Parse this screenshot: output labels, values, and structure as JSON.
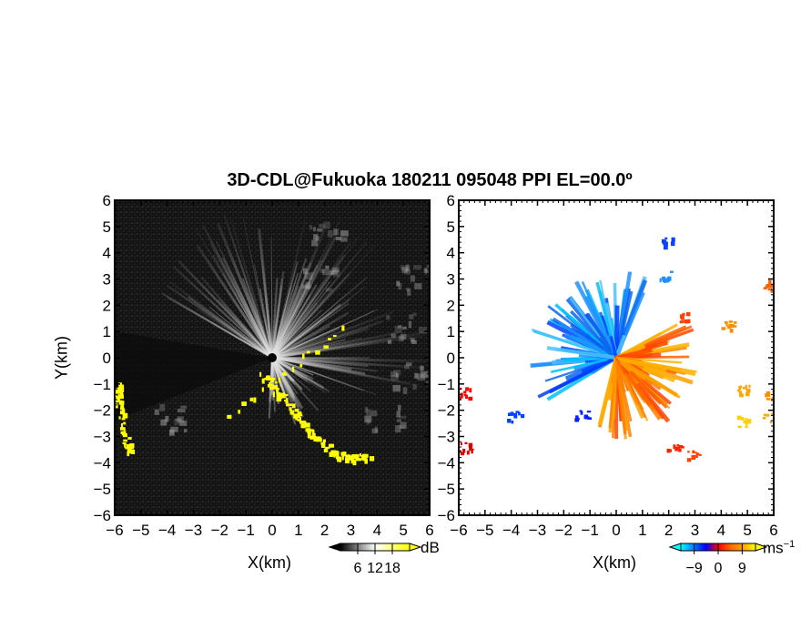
{
  "title": "3D-CDL@Fukuoka 180211 095048 PPI EL=00.0º",
  "chart_data": [
    {
      "type": "heatmap",
      "panel": "left",
      "xlabel": "X(km)",
      "ylabel": "Y(km)",
      "xlim": [
        -6,
        6
      ],
      "ylim": [
        -6,
        6
      ],
      "xticks": [
        "−6",
        "−5",
        "−4",
        "−3",
        "−2",
        "−1",
        "0",
        "1",
        "2",
        "3",
        "4",
        "5",
        "6"
      ],
      "yticks": [
        "6",
        "5",
        "4",
        "3",
        "2",
        "1",
        "0",
        "−1",
        "−2",
        "−3",
        "−4",
        "−5",
        "−6"
      ],
      "colorbar": {
        "unit": "dB",
        "ticks": [
          6,
          12,
          18
        ],
        "tick_labels": [
          "6",
          "12",
          "18"
        ],
        "range": [
          0,
          24
        ],
        "colors": [
          "#000000",
          "#ffffff",
          "#ffff00"
        ]
      },
      "colors": {
        "background": "#141414",
        "echo": "#e0e0e0",
        "high": "#ffff00"
      },
      "highlight_regions_km": [
        {
          "name": "yellow-band-ne-sw",
          "points": [
            [
              -0.4,
              -0.6
            ],
            [
              0.3,
              -1.4
            ],
            [
              1.0,
              -2.2
            ],
            [
              1.6,
              -3.0
            ],
            [
              2.4,
              -3.6
            ],
            [
              3.0,
              -3.8
            ],
            [
              3.6,
              -3.7
            ]
          ]
        },
        {
          "name": "yellow-west-edge",
          "points": [
            [
              -5.95,
              -1.0
            ],
            [
              -5.9,
              -1.6
            ],
            [
              -5.6,
              -3.2
            ],
            [
              -5.4,
              -3.5
            ]
          ]
        },
        {
          "name": "yellow-small",
          "points": [
            [
              2.6,
              1.1
            ],
            [
              -1.6,
              -2.1
            ]
          ]
        }
      ]
    },
    {
      "type": "heatmap",
      "panel": "right",
      "xlabel": "X(km)",
      "xlim": [
        -6,
        6
      ],
      "ylim": [
        -6,
        6
      ],
      "xticks": [
        "−6",
        "−5",
        "−4",
        "−3",
        "−2",
        "−1",
        "0",
        "1",
        "2",
        "3",
        "4",
        "5",
        "6"
      ],
      "yticks": [
        "6",
        "5",
        "4",
        "3",
        "2",
        "1",
        "0",
        "−1",
        "−2",
        "−3",
        "−4",
        "−5",
        "−6"
      ],
      "colorbar": {
        "unit": "ms",
        "unit_exp": "−1",
        "ticks": [
          -9,
          0,
          9
        ],
        "tick_labels": [
          "−9",
          "0",
          "9"
        ],
        "range": [
          -14,
          14
        ],
        "colors": [
          "#00ffff",
          "#0080ff",
          "#0000ff",
          "#ff0000",
          "#ff6a00",
          "#ffa500",
          "#ffff00"
        ]
      },
      "sectors": [
        {
          "name": "approaching-blue",
          "velocity": -6,
          "color": "#1e90ff"
        },
        {
          "name": "receding-orange",
          "velocity": 6,
          "color": "#ff8c00"
        }
      ]
    }
  ]
}
